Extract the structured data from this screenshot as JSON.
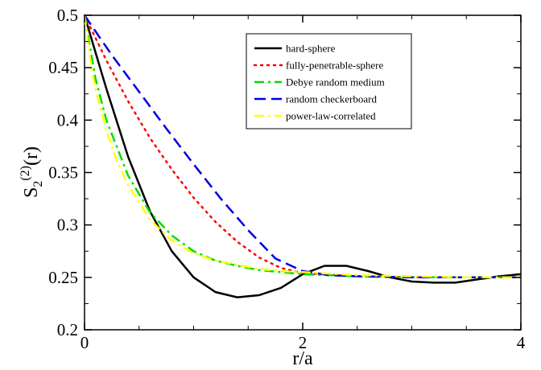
{
  "chart_data": {
    "type": "line",
    "xlabel": "r/a",
    "ylabel": {
      "main": "S",
      "sub": "2",
      "sup": "(2)",
      "tail": "(r)"
    },
    "xlim": [
      0,
      4
    ],
    "ylim": [
      0.2,
      0.5
    ],
    "xticks": [
      "0",
      "2",
      "4"
    ],
    "yticks": [
      "0.2",
      "0.25",
      "0.3",
      "0.35",
      "0.4",
      "0.45",
      "0.5"
    ],
    "grid": false,
    "legend_position": "top-right",
    "series": [
      {
        "name": "hard-sphere",
        "color": "#000000",
        "dash": "solid",
        "x": [
          0,
          0.1,
          0.2,
          0.4,
          0.6,
          0.8,
          1.0,
          1.2,
          1.4,
          1.6,
          1.8,
          2.0,
          2.2,
          2.4,
          2.6,
          2.8,
          3.0,
          3.2,
          3.4,
          3.6,
          3.8,
          4.0
        ],
        "y": [
          0.5,
          0.465,
          0.43,
          0.365,
          0.313,
          0.275,
          0.25,
          0.236,
          0.231,
          0.233,
          0.24,
          0.253,
          0.261,
          0.261,
          0.256,
          0.25,
          0.246,
          0.245,
          0.245,
          0.248,
          0.251,
          0.253
        ]
      },
      {
        "name": "fully-penetrable-sphere",
        "color": "#ff0000",
        "dash": "dotted",
        "x": [
          0,
          0.2,
          0.4,
          0.6,
          0.8,
          1.0,
          1.2,
          1.4,
          1.6,
          1.8,
          2.0,
          2.5,
          3.0,
          3.5,
          4.0
        ],
        "y": [
          0.5,
          0.457,
          0.418,
          0.383,
          0.353,
          0.326,
          0.303,
          0.284,
          0.269,
          0.259,
          0.254,
          0.251,
          0.25,
          0.25,
          0.25
        ]
      },
      {
        "name": "Debye random medium",
        "color": "#00dd00",
        "dash": "dashdot",
        "x": [
          0,
          0.1,
          0.2,
          0.4,
          0.6,
          0.8,
          1.0,
          1.2,
          1.4,
          1.6,
          1.8,
          2.0,
          2.5,
          3.0,
          3.5,
          4.0
        ],
        "y": [
          0.5,
          0.44,
          0.4,
          0.347,
          0.312,
          0.29,
          0.275,
          0.266,
          0.261,
          0.257,
          0.255,
          0.253,
          0.251,
          0.25,
          0.25,
          0.25
        ]
      },
      {
        "name": "random checkerboard",
        "color": "#0000dd",
        "dash": "dashed",
        "x": [
          0,
          0.25,
          0.5,
          0.75,
          1.0,
          1.25,
          1.5,
          1.75,
          2.0,
          2.25,
          2.5,
          3.0,
          3.5,
          4.0
        ],
        "y": [
          0.5,
          0.462,
          0.427,
          0.392,
          0.358,
          0.325,
          0.295,
          0.268,
          0.256,
          0.252,
          0.251,
          0.25,
          0.25,
          0.25
        ]
      },
      {
        "name": "power-law-correlated",
        "color": "#ffff00",
        "dash": "dashdot",
        "x": [
          0,
          0.05,
          0.1,
          0.2,
          0.3,
          0.4,
          0.6,
          0.8,
          1.0,
          1.2,
          1.4,
          1.6,
          1.8,
          2.0,
          2.5,
          3.0,
          3.5,
          4.0
        ],
        "y": [
          0.5,
          0.46,
          0.43,
          0.39,
          0.36,
          0.338,
          0.305,
          0.285,
          0.273,
          0.266,
          0.262,
          0.258,
          0.256,
          0.255,
          0.252,
          0.251,
          0.25,
          0.25
        ]
      }
    ]
  }
}
